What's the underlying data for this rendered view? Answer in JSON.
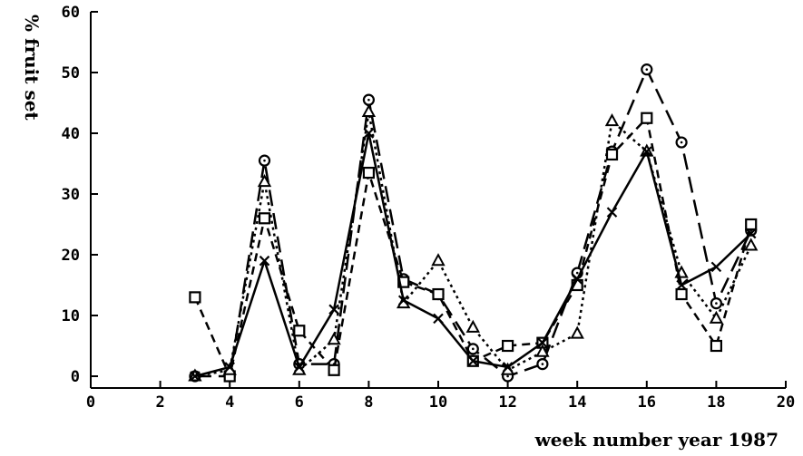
{
  "chart_data": {
    "type": "line",
    "title": "",
    "xlabel": "week number year 1987",
    "ylabel": "% fruit set",
    "xlim": [
      0,
      20
    ],
    "ylim": [
      0,
      60
    ],
    "xticks": [
      0,
      2,
      4,
      6,
      8,
      10,
      12,
      14,
      16,
      18,
      20
    ],
    "yticks": [
      0,
      10,
      20,
      30,
      40,
      50,
      60
    ],
    "grid": false,
    "legend": "none",
    "series": [
      {
        "marker": "circle",
        "line_style": "long-dash",
        "color": "#000000",
        "points": [
          [
            3,
            0
          ],
          [
            4,
            0
          ],
          [
            5,
            35.5
          ],
          [
            6,
            2
          ],
          [
            7,
            2
          ],
          [
            8,
            45.5
          ],
          [
            9,
            16
          ],
          [
            10,
            13.5
          ],
          [
            11,
            4.5
          ],
          [
            12,
            0
          ],
          [
            13,
            2
          ],
          [
            14,
            17
          ],
          [
            15,
            37
          ],
          [
            16,
            50.5
          ],
          [
            17,
            38.5
          ],
          [
            18,
            12
          ],
          [
            19,
            24
          ]
        ]
      },
      {
        "marker": "square",
        "line_style": "dashed",
        "color": "#000000",
        "points": [
          [
            3,
            13
          ],
          [
            4,
            0
          ],
          [
            5,
            26
          ],
          [
            6,
            7.5
          ],
          [
            7,
            1
          ],
          [
            8,
            33.5
          ],
          [
            9,
            15.5
          ],
          [
            10,
            13.5
          ],
          [
            11,
            2.5
          ],
          [
            12,
            5
          ],
          [
            13,
            5.5
          ],
          [
            14,
            15
          ],
          [
            15,
            36.5
          ],
          [
            16,
            42.5
          ],
          [
            17,
            13.5
          ],
          [
            18,
            5
          ],
          [
            19,
            25
          ]
        ]
      },
      {
        "marker": "triangle",
        "line_style": "dotted",
        "color": "#000000",
        "points": [
          [
            3,
            0
          ],
          [
            4,
            1
          ],
          [
            5,
            32
          ],
          [
            6,
            1
          ],
          [
            7,
            6
          ],
          [
            8,
            43.5
          ],
          [
            9,
            12
          ],
          [
            10,
            19
          ],
          [
            11,
            8
          ],
          [
            12,
            1
          ],
          [
            13,
            4
          ],
          [
            14,
            7
          ],
          [
            15,
            42
          ],
          [
            16,
            37
          ],
          [
            17,
            17
          ],
          [
            18,
            9.5
          ],
          [
            19,
            21.5
          ]
        ]
      },
      {
        "marker": "cross",
        "line_style": "solid",
        "color": "#000000",
        "points": [
          [
            3,
            0
          ],
          [
            4,
            1.5
          ],
          [
            5,
            19
          ],
          [
            6,
            1.5
          ],
          [
            7,
            11
          ],
          [
            8,
            40
          ],
          [
            9,
            12.5
          ],
          [
            10,
            9.5
          ],
          [
            11,
            2.5
          ],
          [
            12,
            1.5
          ],
          [
            13,
            5.5
          ],
          [
            14,
            16
          ],
          [
            15,
            27
          ],
          [
            16,
            37
          ],
          [
            17,
            15
          ],
          [
            18,
            18
          ],
          [
            19,
            23.5
          ]
        ]
      }
    ]
  }
}
